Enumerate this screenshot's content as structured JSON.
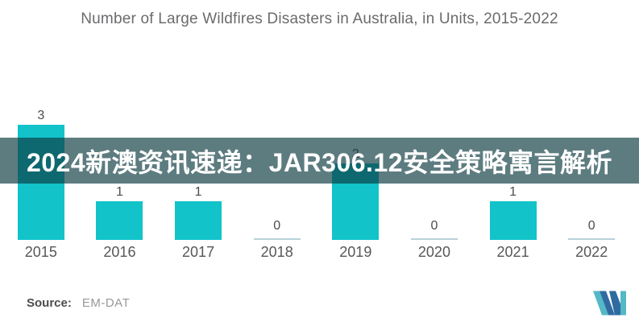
{
  "chart_data": {
    "type": "bar",
    "title": "Number of Large Wildfires Disasters in Australia, in Units, 2015-2022",
    "categories": [
      "2015",
      "2016",
      "2017",
      "2018",
      "2019",
      "2020",
      "2021",
      "2022"
    ],
    "values": [
      3,
      1,
      1,
      0,
      2,
      0,
      1,
      0
    ],
    "ylim": [
      0,
      3
    ],
    "grid": false,
    "legend": false,
    "bar_color": "#12c3ca",
    "zero_line_color": "#b7d2d9",
    "value_label_color": "#4b4c4e",
    "axis_label_color": "#565759"
  },
  "overlay_banner": {
    "text": "2024新澳资讯速递：JAR306.12安全策略寓言解析",
    "bg_color": "rgba(13,60,65,0.67)",
    "text_color": "#ffffff"
  },
  "source": {
    "label": "Source:",
    "value": "EM-DAT"
  },
  "logo": {
    "teal": "#54b8c7",
    "blue": "#2f6ba0"
  }
}
